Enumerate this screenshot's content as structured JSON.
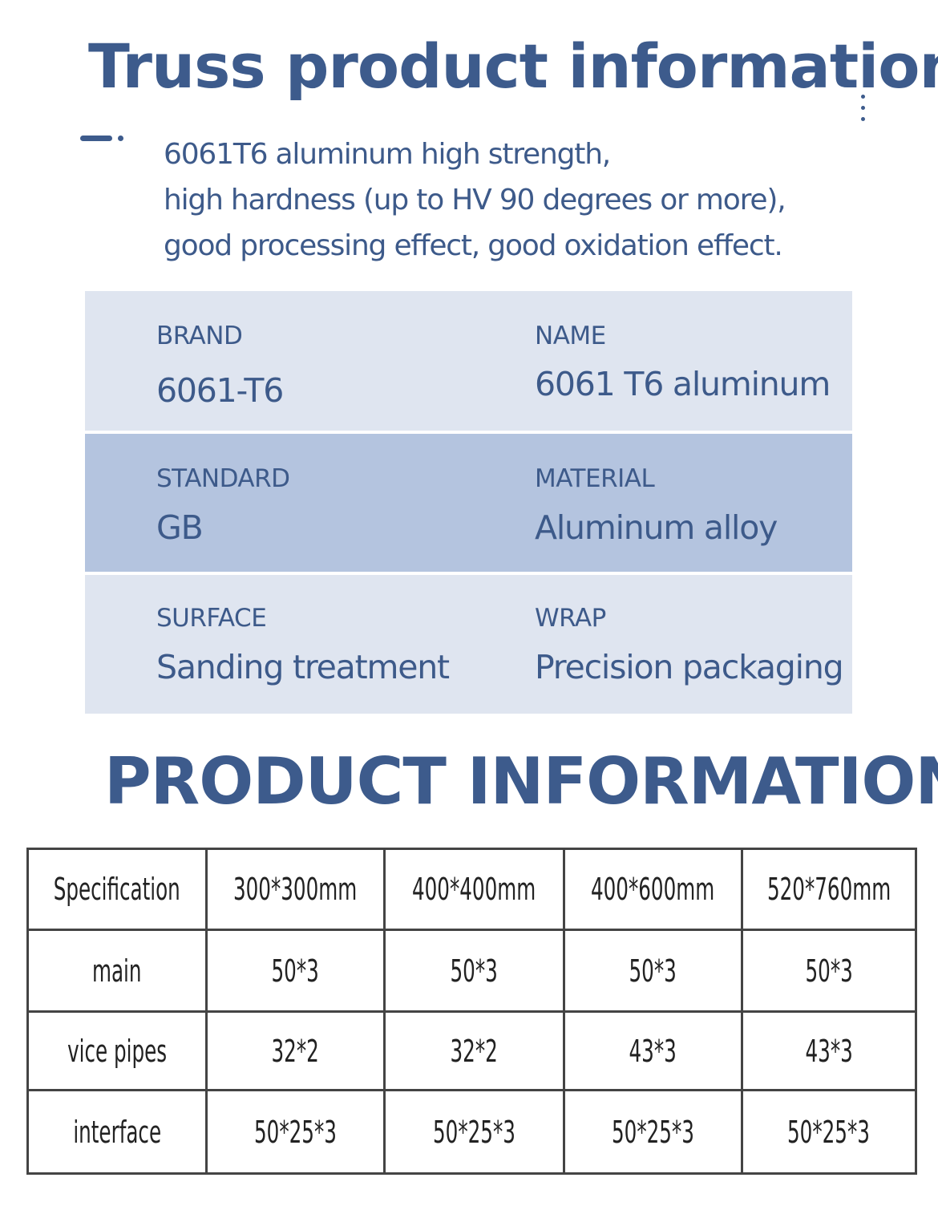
{
  "header": {
    "title": "Truss product information",
    "description": [
      "6061T6 aluminum high strength,",
      "high hardness (up to HV 90 degrees or more),",
      "good processing effect, good oxidation effect."
    ]
  },
  "properties": [
    {
      "label": "BRAND",
      "value": "6061-T6"
    },
    {
      "label": "NAME",
      "value": "6061 T6 aluminum"
    },
    {
      "label": "STANDARD",
      "value": "GB"
    },
    {
      "label": "MATERIAL",
      "value": "Aluminum alloy"
    },
    {
      "label": "SURFACE",
      "value": "Sanding treatment"
    },
    {
      "label": "WRAP",
      "value": "Precision packaging"
    }
  ],
  "product_section": {
    "title": "PRODUCT INFORMATION",
    "table": {
      "header": [
        "Specification",
        "300*300mm",
        "400*400mm",
        "400*600mm",
        "520*760mm"
      ],
      "rows": [
        [
          "main",
          "50*3",
          "50*3",
          "50*3",
          "50*3"
        ],
        [
          "vice pipes",
          "32*2",
          "32*2",
          "43*3",
          "43*3"
        ],
        [
          "interface",
          "50*25*3",
          "50*25*3",
          "50*25*3",
          "50*25*3"
        ]
      ]
    }
  },
  "colors": {
    "accent": "#3d5b8c",
    "panel_light": "#dfe5f0",
    "panel_dark": "#b4c4df"
  }
}
